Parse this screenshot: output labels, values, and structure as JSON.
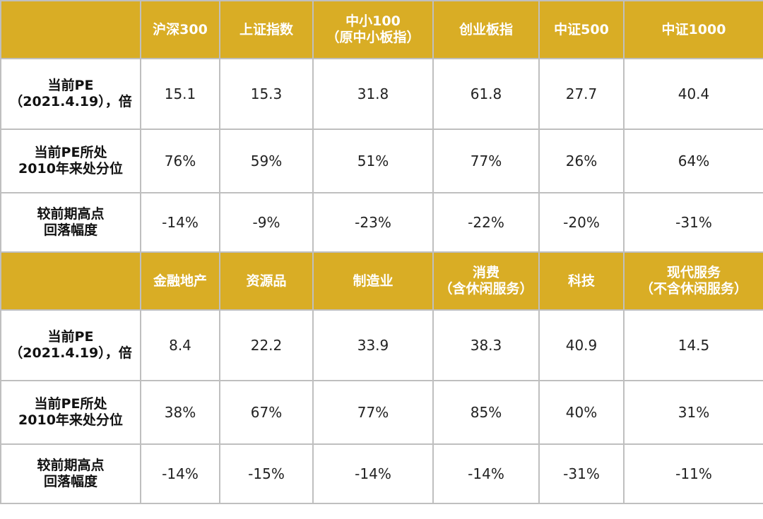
{
  "colors": {
    "header_bg": "#d9ad25",
    "header_text": "#ffffff",
    "border": "#bfbfbf"
  },
  "row_labels": {
    "pe": [
      "当前PE",
      "（2021.4.19），倍"
    ],
    "pct": [
      "当前PE所处",
      "2010年来处分位"
    ],
    "drop": [
      "较前期高点",
      "回落幅度"
    ]
  },
  "tables": [
    {
      "headers": [
        [
          "沪深300"
        ],
        [
          "上证指数"
        ],
        [
          "中小100",
          "（原中小板指）"
        ],
        [
          "创业板指"
        ],
        [
          "中证500"
        ],
        [
          "中证1000"
        ]
      ],
      "pe": [
        "15.1",
        "15.3",
        "31.8",
        "61.8",
        "27.7",
        "40.4"
      ],
      "pct": [
        "76%",
        "59%",
        "51%",
        "77%",
        "26%",
        "64%"
      ],
      "drop": [
        "-14%",
        "-9%",
        "-23%",
        "-22%",
        "-20%",
        "-31%"
      ]
    },
    {
      "headers": [
        [
          "金融地产"
        ],
        [
          "资源品"
        ],
        [
          "制造业"
        ],
        [
          "消费",
          "（含休闲服务）"
        ],
        [
          "科技"
        ],
        [
          "现代服务",
          "（不含休闲服务）"
        ]
      ],
      "pe": [
        "8.4",
        "22.2",
        "33.9",
        "38.3",
        "40.9",
        "14.5"
      ],
      "pct": [
        "38%",
        "67%",
        "77%",
        "85%",
        "40%",
        "31%"
      ],
      "drop": [
        "-14%",
        "-15%",
        "-14%",
        "-14%",
        "-31%",
        "-11%"
      ]
    }
  ]
}
